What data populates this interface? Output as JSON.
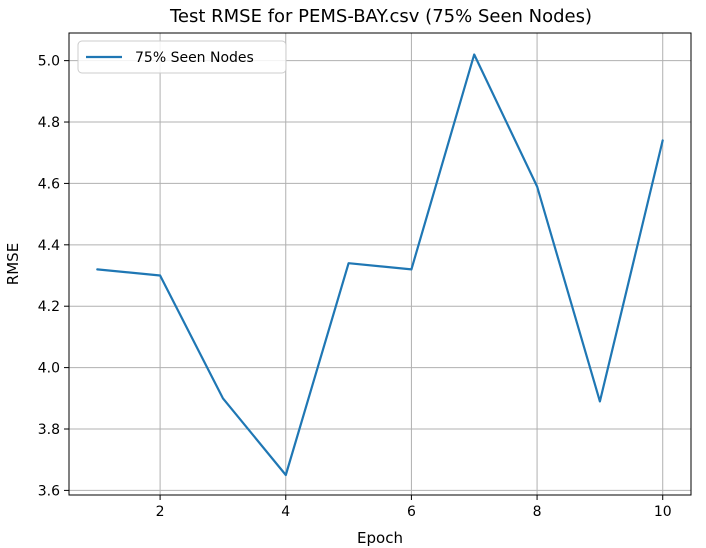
{
  "chart_data": {
    "type": "line",
    "title": "Test RMSE for PEMS-BAY.csv (75% Seen Nodes)",
    "xlabel": "Epoch",
    "ylabel": "RMSE",
    "x": [
      1,
      2,
      3,
      4,
      5,
      6,
      7,
      8,
      9,
      10
    ],
    "series": [
      {
        "name": "75% Seen Nodes",
        "color": "#1f77b4",
        "values": [
          4.32,
          4.3,
          3.9,
          3.65,
          4.34,
          4.32,
          5.02,
          4.59,
          3.89,
          4.74
        ]
      }
    ],
    "xticks": [
      "2",
      "4",
      "6",
      "8",
      "10"
    ],
    "yticks": [
      "3.6",
      "3.8",
      "4.0",
      "4.2",
      "4.4",
      "4.6",
      "4.8",
      "5.0"
    ],
    "xlim": [
      0.55,
      10.45
    ],
    "ylim": [
      3.585,
      5.09
    ],
    "grid": true,
    "legend_position": "top-left"
  }
}
